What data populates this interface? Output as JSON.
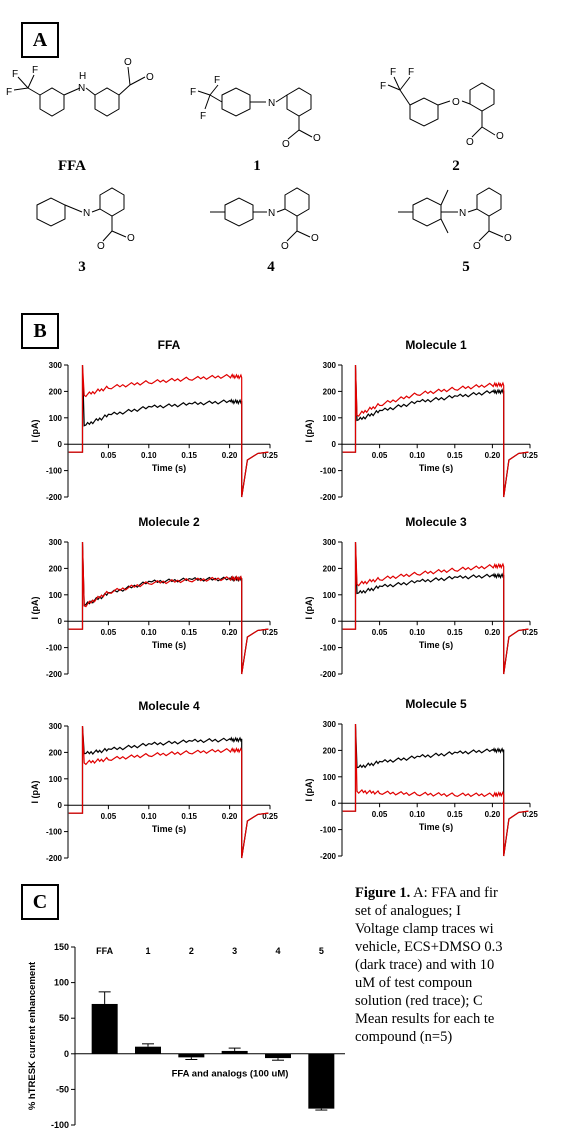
{
  "panel_labels": {
    "a": "A",
    "b": "B",
    "c": "C"
  },
  "molecules": [
    "FFA",
    "1",
    "2",
    "3",
    "4",
    "5"
  ],
  "atom_labels": {
    "f": "F",
    "n": "N",
    "h": "H",
    "o": "O"
  },
  "caption": {
    "label": "Figure 1.",
    "lines": [
      "A: FFA and fir",
      "set of analogues; I",
      "Voltage clamp traces wi",
      "vehicle, ECS+DMSO 0.3",
      "(dark trace) and with 10",
      "uM of test compoun",
      "solution (red trace); C",
      "Mean results for each te",
      "compound (n=5)"
    ]
  },
  "chart_data": [
    {
      "type": "line",
      "title": "FFA",
      "xlabel": "Time (s)",
      "ylabel": "I (pA)",
      "xlim": [
        0,
        0.25
      ],
      "ylim": [
        -200,
        300
      ],
      "xticks": [
        "0.05",
        "0.10",
        "0.15",
        "0.20",
        "0.25"
      ],
      "yticks": [
        "300",
        "200",
        "100",
        "0",
        "-100",
        "-200"
      ],
      "series": [
        {
          "color": "#000000",
          "baseline": -30,
          "values": [
            [
              0.02,
              70
            ],
            [
              0.05,
              110
            ],
            [
              0.1,
              140
            ],
            [
              0.15,
              152
            ],
            [
              0.2,
              162
            ],
            [
              0.215,
              160
            ]
          ]
        },
        {
          "color": "#e00000",
          "baseline": -30,
          "values": [
            [
              0.02,
              185
            ],
            [
              0.05,
              215
            ],
            [
              0.1,
              235
            ],
            [
              0.15,
              248
            ],
            [
              0.2,
              258
            ],
            [
              0.215,
              255
            ]
          ]
        }
      ]
    },
    {
      "type": "line",
      "title": "Molecule 1",
      "xlabel": "Time (s)",
      "ylabel": "I (pA)",
      "xlim": [
        0,
        0.25
      ],
      "ylim": [
        -200,
        300
      ],
      "xticks": [
        "0.05",
        "0.10",
        "0.15",
        "0.20",
        "0.25"
      ],
      "yticks": [
        "300",
        "200",
        "100",
        "0",
        "-100",
        "-200"
      ],
      "series": [
        {
          "color": "#000000",
          "baseline": -30,
          "values": [
            [
              0.02,
              90
            ],
            [
              0.05,
              125
            ],
            [
              0.1,
              160
            ],
            [
              0.15,
              180
            ],
            [
              0.2,
              198
            ],
            [
              0.215,
              200
            ]
          ]
        },
        {
          "color": "#e00000",
          "baseline": -30,
          "values": [
            [
              0.02,
              110
            ],
            [
              0.05,
              150
            ],
            [
              0.1,
              190
            ],
            [
              0.15,
              210
            ],
            [
              0.2,
              225
            ],
            [
              0.215,
              225
            ]
          ]
        }
      ]
    },
    {
      "type": "line",
      "title": "Molecule 2",
      "xlabel": "Time (s)",
      "ylabel": "I (pA)",
      "xlim": [
        0,
        0.25
      ],
      "ylim": [
        -200,
        300
      ],
      "xticks": [
        "0.05",
        "0.10",
        "0.15",
        "0.20",
        "0.25"
      ],
      "yticks": [
        "300",
        "200",
        "100",
        "0",
        "-100",
        "-200"
      ],
      "series": [
        {
          "color": "#000000",
          "baseline": -30,
          "values": [
            [
              0.02,
              60
            ],
            [
              0.05,
              105
            ],
            [
              0.1,
              148
            ],
            [
              0.15,
              158
            ],
            [
              0.2,
              160
            ],
            [
              0.215,
              160
            ]
          ]
        },
        {
          "color": "#e00000",
          "baseline": -30,
          "values": [
            [
              0.02,
              58
            ],
            [
              0.05,
              110
            ],
            [
              0.1,
              145
            ],
            [
              0.15,
              155
            ],
            [
              0.2,
              162
            ],
            [
              0.215,
              162
            ]
          ]
        }
      ]
    },
    {
      "type": "line",
      "title": "Molecule 3",
      "xlabel": "Time (s)",
      "ylabel": "I (pA)",
      "xlim": [
        0,
        0.25
      ],
      "ylim": [
        -200,
        300
      ],
      "xticks": [
        "0.05",
        "0.10",
        "0.15",
        "0.20",
        "0.25"
      ],
      "yticks": [
        "300",
        "200",
        "100",
        "0",
        "-100",
        "-200"
      ],
      "series": [
        {
          "color": "#000000",
          "baseline": -30,
          "values": [
            [
              0.02,
              105
            ],
            [
              0.05,
              130
            ],
            [
              0.1,
              150
            ],
            [
              0.15,
              165
            ],
            [
              0.2,
              172
            ],
            [
              0.215,
              172
            ]
          ]
        },
        {
          "color": "#e00000",
          "baseline": -30,
          "values": [
            [
              0.02,
              140
            ],
            [
              0.05,
              160
            ],
            [
              0.1,
              180
            ],
            [
              0.15,
              195
            ],
            [
              0.2,
              208
            ],
            [
              0.215,
              210
            ]
          ]
        }
      ]
    },
    {
      "type": "line",
      "title": "Molecule 4",
      "xlabel": "Time (s)",
      "ylabel": "I (pA)",
      "xlim": [
        0,
        0.25
      ],
      "ylim": [
        -200,
        300
      ],
      "xticks": [
        "0.05",
        "0.10",
        "0.15",
        "0.20",
        "0.25"
      ],
      "yticks": [
        "300",
        "200",
        "100",
        "0",
        "-100",
        "-200"
      ],
      "series": [
        {
          "color": "#000000",
          "baseline": -30,
          "values": [
            [
              0.02,
              195
            ],
            [
              0.05,
              210
            ],
            [
              0.1,
              230
            ],
            [
              0.15,
              242
            ],
            [
              0.2,
              248
            ],
            [
              0.215,
              248
            ]
          ]
        },
        {
          "color": "#e00000",
          "baseline": -30,
          "values": [
            [
              0.02,
              160
            ],
            [
              0.05,
              175
            ],
            [
              0.1,
              190
            ],
            [
              0.15,
              200
            ],
            [
              0.2,
              208
            ],
            [
              0.215,
              208
            ]
          ]
        }
      ]
    },
    {
      "type": "line",
      "title": "Molecule 5",
      "xlabel": "Time (s)",
      "ylabel": "I (pA)",
      "xlim": [
        0,
        0.25
      ],
      "ylim": [
        -200,
        300
      ],
      "xticks": [
        "0.05",
        "0.10",
        "0.15",
        "0.20",
        "0.25"
      ],
      "yticks": [
        "300",
        "200",
        "100",
        "0",
        "-100",
        "-200"
      ],
      "series": [
        {
          "color": "#000000",
          "baseline": -30,
          "values": [
            [
              0.02,
              135
            ],
            [
              0.05,
              155
            ],
            [
              0.1,
              175
            ],
            [
              0.15,
              190
            ],
            [
              0.2,
              200
            ],
            [
              0.215,
              200
            ]
          ]
        },
        {
          "color": "#e00000",
          "baseline": -30,
          "values": [
            [
              0.02,
              45
            ],
            [
              0.05,
              40
            ],
            [
              0.1,
              35
            ],
            [
              0.15,
              32
            ],
            [
              0.2,
              32
            ],
            [
              0.215,
              35
            ]
          ]
        }
      ]
    },
    {
      "type": "bar",
      "ylabel": "% hTRESK current enhancement",
      "xlabel": "FFA and analogs (100 uM)",
      "categories": [
        "FFA",
        "1",
        "2",
        "3",
        "4",
        "5"
      ],
      "values": [
        70,
        10,
        -5,
        4,
        -6,
        -77
      ],
      "errors": [
        17,
        4,
        3,
        4,
        3,
        2
      ],
      "ylim": [
        -100,
        150
      ],
      "yticks": [
        "150",
        "100",
        "50",
        "0",
        "-50",
        "-100"
      ]
    }
  ]
}
